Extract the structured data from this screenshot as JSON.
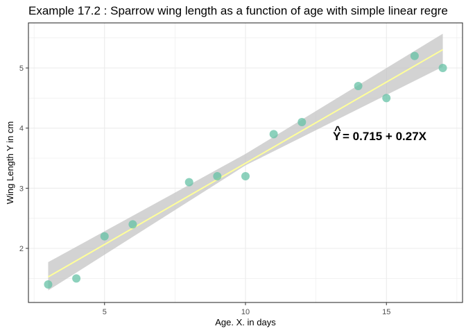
{
  "chart_data": {
    "type": "scatter",
    "title": "Example 17.2 : Sparrow wing length as a function of age with simple linear regre",
    "xlabel": "Age. X. in days",
    "ylabel": "Wing Length Y in cm",
    "xlim": [
      2.3,
      17.7
    ],
    "ylim": [
      1.1,
      5.75
    ],
    "x_ticks": [
      5,
      10,
      15
    ],
    "y_ticks": [
      2,
      3,
      4,
      5
    ],
    "grid": true,
    "points": {
      "x": [
        3,
        4,
        5,
        6,
        8,
        9,
        10,
        11,
        12,
        14,
        15,
        16,
        17
      ],
      "y": [
        1.4,
        1.5,
        2.2,
        2.4,
        3.1,
        3.2,
        3.2,
        3.9,
        4.1,
        4.7,
        4.5,
        5.2,
        5.0
      ]
    },
    "regression": {
      "intercept": 0.715,
      "slope": 0.27,
      "x_range": [
        3,
        17
      ],
      "confidence_band": {
        "x": [
          3,
          10,
          17
        ],
        "lower": [
          1.3,
          3.38,
          5.02
        ],
        "upper": [
          1.77,
          3.57,
          5.57
        ]
      }
    },
    "annotation": {
      "text": "= 0.715 + 0.27X",
      "symbol": "Y",
      "hat": "^",
      "x": 13.1,
      "y": 3.87
    },
    "colors": {
      "points": "#66c2a5",
      "line": "#ffff99",
      "band": "#c0c0c0",
      "panel_border": "#333333",
      "grid": "#ebebeb"
    }
  }
}
